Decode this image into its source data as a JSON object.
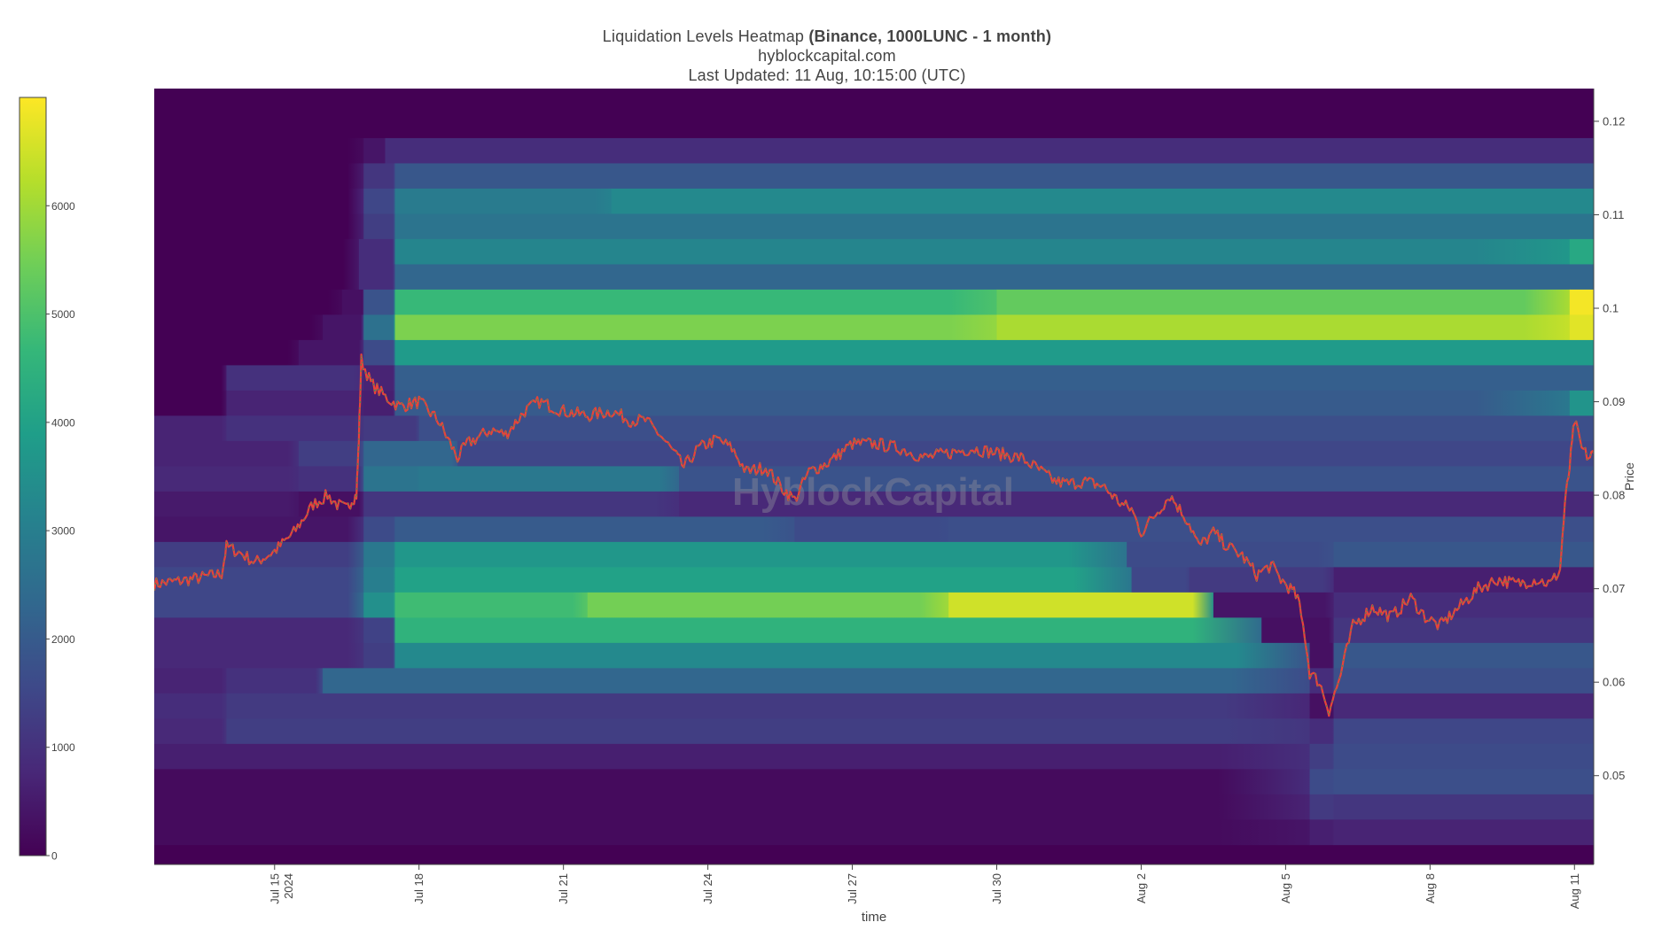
{
  "header": {
    "title_main": "Liquidation Levels Heatmap",
    "title_bold": "(Binance, 1000LUNC - 1 month)",
    "subtitle": "hyblockcapital.com",
    "updated": "Last Updated: 11 Aug, 10:15:00 (UTC)"
  },
  "watermark": "HyblockCapital",
  "chart_data": {
    "type": "heatmap",
    "xlabel": "time",
    "ylabel": "Price",
    "x_ticks": [
      {
        "label": "Jul 15",
        "sub": "2024",
        "day": 3
      },
      {
        "label": "Jul 18",
        "day": 6
      },
      {
        "label": "Jul 21",
        "day": 9
      },
      {
        "label": "Jul 24",
        "day": 12
      },
      {
        "label": "Jul 27",
        "day": 15
      },
      {
        "label": "Jul 30",
        "day": 18
      },
      {
        "label": "Aug 2",
        "day": 21
      },
      {
        "label": "Aug 5",
        "day": 24
      },
      {
        "label": "Aug 8",
        "day": 27
      },
      {
        "label": "Aug 11",
        "day": 30
      }
    ],
    "x_range_days": [
      0.5,
      30.4
    ],
    "y_ticks": [
      0.05,
      0.06,
      0.07,
      0.08,
      0.09,
      0.1,
      0.11,
      0.12
    ],
    "y_tick_labels": [
      "0.05",
      "0.06",
      "0.07",
      "0.08",
      "0.09",
      "0.1",
      "0.11",
      "0.12"
    ],
    "ylim": [
      0.0405,
      0.1235
    ],
    "colorbar": {
      "range": [
        0,
        7000
      ],
      "ticks": [
        0,
        1000,
        2000,
        3000,
        4000,
        5000,
        6000
      ],
      "tick_labels": [
        "0",
        "1000",
        "2000",
        "3000",
        "4000",
        "5000",
        "6000"
      ],
      "colors": [
        "#440154",
        "#482878",
        "#3e4989",
        "#31688e",
        "#26828e",
        "#1f9e89",
        "#35b779",
        "#6ece58",
        "#b5de2b",
        "#fde725"
      ]
    },
    "bands": [
      {
        "y0": 0.1155,
        "y1": 0.1182,
        "segs": [
          [
            4.85,
            0
          ],
          [
            5.3,
            400
          ],
          [
            30.4,
            900
          ]
        ]
      },
      {
        "y0": 0.1128,
        "y1": 0.1155,
        "segs": [
          [
            4.85,
            0
          ],
          [
            5.5,
            1100
          ],
          [
            30.4,
            1900
          ]
        ]
      },
      {
        "y0": 0.1101,
        "y1": 0.1128,
        "segs": [
          [
            4.85,
            0
          ],
          [
            5.5,
            1500
          ],
          [
            10,
            2900
          ],
          [
            30.4,
            3300
          ]
        ]
      },
      {
        "y0": 0.1074,
        "y1": 0.1101,
        "segs": [
          [
            4.85,
            0
          ],
          [
            5.5,
            1300
          ],
          [
            30.4,
            2700
          ]
        ]
      },
      {
        "y0": 0.1047,
        "y1": 0.1074,
        "segs": [
          [
            4.75,
            0
          ],
          [
            5.5,
            900
          ],
          [
            29.9,
            3200
          ],
          [
            30.4,
            4200
          ]
        ]
      },
      {
        "y0": 0.102,
        "y1": 0.1047,
        "segs": [
          [
            4.75,
            0
          ],
          [
            5.5,
            900
          ],
          [
            30.4,
            2300
          ]
        ]
      },
      {
        "y0": 0.0993,
        "y1": 0.102,
        "segs": [
          [
            4.4,
            0
          ],
          [
            4.85,
            300
          ],
          [
            5.5,
            1800
          ],
          [
            18,
            4700
          ],
          [
            29.9,
            5300
          ],
          [
            30.4,
            6900
          ]
        ]
      },
      {
        "y0": 0.0966,
        "y1": 0.0993,
        "segs": [
          [
            4.0,
            0
          ],
          [
            4.85,
            400
          ],
          [
            5.5,
            2600
          ],
          [
            18,
            5600
          ],
          [
            29.9,
            6100
          ],
          [
            30.4,
            6700
          ]
        ]
      },
      {
        "y0": 0.0939,
        "y1": 0.0966,
        "segs": [
          [
            3.5,
            0
          ],
          [
            4.85,
            400
          ],
          [
            5.5,
            1600
          ],
          [
            30.4,
            3800
          ]
        ]
      },
      {
        "y0": 0.0912,
        "y1": 0.0939,
        "segs": [
          [
            2.0,
            0
          ],
          [
            4.85,
            1000
          ],
          [
            5.5,
            700
          ],
          [
            30.4,
            2100
          ]
        ]
      },
      {
        "y0": 0.0885,
        "y1": 0.0912,
        "segs": [
          [
            2.0,
            0
          ],
          [
            4.85,
            700
          ],
          [
            5.5,
            600
          ],
          [
            29.9,
            2000
          ],
          [
            30.4,
            3600
          ]
        ]
      },
      {
        "y0": 0.0858,
        "y1": 0.0885,
        "segs": [
          [
            0.5,
            200
          ],
          [
            2.0,
            700
          ],
          [
            4.85,
            1000
          ],
          [
            6.0,
            1200
          ],
          [
            30.4,
            1700
          ]
        ]
      },
      {
        "y0": 0.0831,
        "y1": 0.0858,
        "segs": [
          [
            0.5,
            300
          ],
          [
            3.5,
            700
          ],
          [
            4.85,
            1300
          ],
          [
            6.8,
            2300
          ],
          [
            30.4,
            1500
          ]
        ]
      },
      {
        "y0": 0.0804,
        "y1": 0.0831,
        "segs": [
          [
            0.5,
            300
          ],
          [
            3.5,
            800
          ],
          [
            4.85,
            1000
          ],
          [
            6.0,
            2700
          ],
          [
            11.4,
            2800
          ],
          [
            30.4,
            1800
          ]
        ]
      },
      {
        "y0": 0.0777,
        "y1": 0.0804,
        "segs": [
          [
            0.5,
            200
          ],
          [
            3.5,
            500
          ],
          [
            4.85,
            300
          ],
          [
            11.4,
            1100
          ],
          [
            30.4,
            800
          ]
        ]
      },
      {
        "y0": 0.075,
        "y1": 0.0777,
        "segs": [
          [
            0.5,
            150
          ],
          [
            4.85,
            400
          ],
          [
            5.5,
            1600
          ],
          [
            13.8,
            2000
          ],
          [
            17.0,
            1600
          ],
          [
            30.4,
            1700
          ]
        ]
      },
      {
        "y0": 0.0723,
        "y1": 0.075,
        "segs": [
          [
            0.5,
            200
          ],
          [
            4.85,
            1300
          ],
          [
            5.5,
            2800
          ],
          [
            20.7,
            3700
          ],
          [
            25.0,
            1600
          ],
          [
            30.4,
            1900
          ]
        ]
      },
      {
        "y0": 0.0696,
        "y1": 0.0723,
        "segs": [
          [
            0.5,
            300
          ],
          [
            4.85,
            1500
          ],
          [
            5.5,
            3000
          ],
          [
            20.8,
            4000
          ],
          [
            22.0,
            1500
          ],
          [
            25.0,
            1200
          ],
          [
            30.4,
            600
          ]
        ]
      },
      {
        "y0": 0.0669,
        "y1": 0.0696,
        "segs": [
          [
            0.5,
            800
          ],
          [
            4.85,
            1500
          ],
          [
            5.5,
            3500
          ],
          [
            9.5,
            4800
          ],
          [
            17.0,
            5500
          ],
          [
            22.5,
            6500
          ],
          [
            25.0,
            400
          ],
          [
            30.4,
            900
          ]
        ]
      },
      {
        "y0": 0.0642,
        "y1": 0.0669,
        "segs": [
          [
            0.5,
            500
          ],
          [
            4.85,
            800
          ],
          [
            5.5,
            1400
          ],
          [
            23.5,
            4500
          ],
          [
            25.0,
            300
          ],
          [
            30.4,
            1100
          ]
        ]
      },
      {
        "y0": 0.0615,
        "y1": 0.0642,
        "segs": [
          [
            0.5,
            400
          ],
          [
            4.85,
            800
          ],
          [
            5.5,
            1300
          ],
          [
            24.5,
            3300
          ],
          [
            25.0,
            300
          ],
          [
            30.4,
            1900
          ]
        ]
      },
      {
        "y0": 0.0588,
        "y1": 0.0615,
        "segs": [
          [
            0.5,
            200
          ],
          [
            2.0,
            700
          ],
          [
            4.0,
            1000
          ],
          [
            24.5,
            2300
          ],
          [
            25.0,
            900
          ],
          [
            30.4,
            1700
          ]
        ]
      },
      {
        "y0": 0.0561,
        "y1": 0.0588,
        "segs": [
          [
            0.5,
            300
          ],
          [
            2.0,
            900
          ],
          [
            24.5,
            1200
          ],
          [
            25.0,
            300
          ],
          [
            30.4,
            800
          ]
        ]
      },
      {
        "y0": 0.0534,
        "y1": 0.0561,
        "segs": [
          [
            0.5,
            300
          ],
          [
            2.0,
            800
          ],
          [
            24.5,
            1300
          ],
          [
            25.0,
            900
          ],
          [
            30.4,
            1500
          ]
        ]
      },
      {
        "y0": 0.0507,
        "y1": 0.0534,
        "segs": [
          [
            0.5,
            200
          ],
          [
            24.5,
            600
          ],
          [
            25.0,
            1300
          ],
          [
            30.4,
            1600
          ]
        ]
      },
      {
        "y0": 0.048,
        "y1": 0.0507,
        "segs": [
          [
            0.5,
            0
          ],
          [
            24.5,
            200
          ],
          [
            25.0,
            1600
          ],
          [
            30.4,
            1700
          ]
        ]
      },
      {
        "y0": 0.0453,
        "y1": 0.048,
        "segs": [
          [
            0.5,
            0
          ],
          [
            24.5,
            200
          ],
          [
            25.0,
            1200
          ],
          [
            30.4,
            1100
          ]
        ]
      },
      {
        "y0": 0.0426,
        "y1": 0.0453,
        "segs": [
          [
            0.5,
            0
          ],
          [
            24.5,
            200
          ],
          [
            25.0,
            600
          ],
          [
            30.4,
            700
          ]
        ]
      }
    ],
    "price_series": {
      "name": "Price",
      "x": [
        0.5,
        1.0,
        1.5,
        1.9,
        2.0,
        2.3,
        2.6,
        3.0,
        3.4,
        3.8,
        4.1,
        4.3,
        4.5,
        4.6,
        4.7,
        4.75,
        4.8,
        5.0,
        5.3,
        5.6,
        6.0,
        6.4,
        6.6,
        6.8,
        7.0,
        7.5,
        7.8,
        8.2,
        8.5,
        9.0,
        9.5,
        10.0,
        10.4,
        10.7,
        11.0,
        11.3,
        11.5,
        11.8,
        12.2,
        12.5,
        12.8,
        13.2,
        13.5,
        13.8,
        14.1,
        14.5,
        15.0,
        15.5,
        16.0,
        16.5,
        17.0,
        17.5,
        18.0,
        18.5,
        18.8,
        19.2,
        19.5,
        19.8,
        20.2,
        20.6,
        20.8,
        21.0,
        21.3,
        21.6,
        22.0,
        22.2,
        22.5,
        22.8,
        23.1,
        23.4,
        23.7,
        23.9,
        24.1,
        24.25,
        24.4,
        24.5,
        24.7,
        24.9,
        25.1,
        25.4,
        25.8,
        26.2,
        26.6,
        26.9,
        27.2,
        27.6,
        28.0,
        28.4,
        28.8,
        29.2,
        29.5,
        29.7,
        29.8,
        29.9,
        30.0,
        30.15,
        30.3,
        30.4
      ],
      "y": [
        0.0705,
        0.0708,
        0.0712,
        0.0716,
        0.0745,
        0.0738,
        0.0728,
        0.074,
        0.076,
        0.079,
        0.08,
        0.079,
        0.0785,
        0.0795,
        0.08,
        0.086,
        0.0945,
        0.092,
        0.0905,
        0.0895,
        0.09,
        0.088,
        0.086,
        0.084,
        0.0855,
        0.087,
        0.0865,
        0.089,
        0.09,
        0.089,
        0.0885,
        0.089,
        0.088,
        0.088,
        0.0865,
        0.0845,
        0.083,
        0.085,
        0.086,
        0.085,
        0.0825,
        0.083,
        0.081,
        0.0795,
        0.0825,
        0.0835,
        0.0855,
        0.0855,
        0.085,
        0.084,
        0.0845,
        0.085,
        0.0845,
        0.084,
        0.083,
        0.0815,
        0.0812,
        0.0815,
        0.081,
        0.079,
        0.0785,
        0.076,
        0.078,
        0.08,
        0.077,
        0.0745,
        0.076,
        0.0745,
        0.0735,
        0.0715,
        0.0725,
        0.071,
        0.07,
        0.069,
        0.065,
        0.061,
        0.06,
        0.057,
        0.06,
        0.066,
        0.068,
        0.067,
        0.069,
        0.067,
        0.066,
        0.068,
        0.07,
        0.071,
        0.0705,
        0.071,
        0.0705,
        0.072,
        0.079,
        0.083,
        0.088,
        0.085,
        0.084,
        0.0845
      ]
    }
  }
}
